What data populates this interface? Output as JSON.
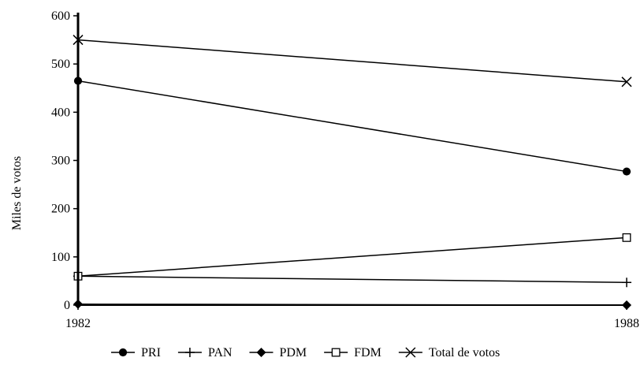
{
  "chart_data": {
    "type": "line",
    "categories": [
      "1982",
      "1988"
    ],
    "ylabel": "Miles de votos",
    "xlabel": "",
    "ylim": [
      0,
      600
    ],
    "yticks": [
      "0",
      "100",
      "200",
      "300",
      "400",
      "500",
      "600"
    ],
    "grid": false,
    "legend_position": "bottom",
    "series": [
      {
        "name": "PRI",
        "values": [
          465,
          277
        ],
        "marker": "filled-circle",
        "color": "#000000"
      },
      {
        "name": "PAN",
        "values": [
          60,
          47
        ],
        "marker": "plus",
        "color": "#000000"
      },
      {
        "name": "PDM",
        "values": [
          2,
          0
        ],
        "marker": "filled-diamond",
        "color": "#000000"
      },
      {
        "name": "FDM",
        "values": [
          60,
          140
        ],
        "marker": "open-square",
        "color": "#000000"
      },
      {
        "name": "Total de votos",
        "values": [
          550,
          463
        ],
        "marker": "x",
        "color": "#000000"
      }
    ]
  }
}
